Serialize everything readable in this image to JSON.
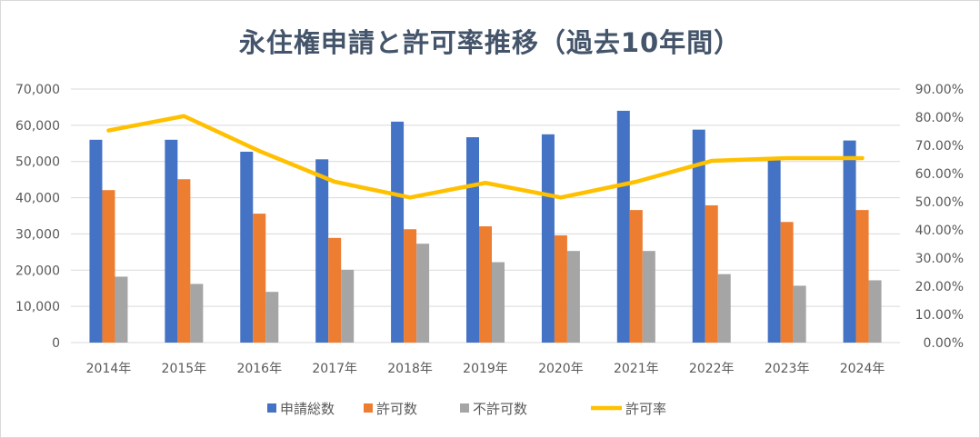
{
  "colors": {
    "applications": "#4472c4",
    "approvals": "#ed7d31",
    "rejections": "#a5a5a5",
    "rate": "#ffc000",
    "grid": "#d9d9d9",
    "title": "#44546a"
  },
  "chart_data": {
    "type": "bar",
    "title": "永住権申請と許可率推移（過去10年間）",
    "categories": [
      "2014年",
      "2015年",
      "2016年",
      "2017年",
      "2018年",
      "2019年",
      "2020年",
      "2021年",
      "2022年",
      "2023年",
      "2024年"
    ],
    "series": [
      {
        "name": "申請総数",
        "type": "bar",
        "axis": "left",
        "values": [
          56000,
          56000,
          52700,
          50600,
          61000,
          56700,
          57500,
          64000,
          58800,
          51000,
          55800
        ]
      },
      {
        "name": "許可数",
        "type": "bar",
        "axis": "left",
        "values": [
          42100,
          45100,
          35600,
          28900,
          31300,
          32100,
          29600,
          36600,
          37900,
          33300,
          36600
        ]
      },
      {
        "name": "不許可数",
        "type": "bar",
        "axis": "left",
        "values": [
          18200,
          16200,
          14000,
          20100,
          27300,
          22200,
          25300,
          25300,
          18900,
          15700,
          17200
        ]
      },
      {
        "name": "許可率",
        "type": "line",
        "axis": "right",
        "values": [
          0.753,
          0.804,
          0.68,
          0.571,
          0.515,
          0.567,
          0.515,
          0.571,
          0.645,
          0.655,
          0.655
        ]
      }
    ],
    "y_left": {
      "min": 0,
      "max": 70000,
      "ticks": [
        "0",
        "10,000",
        "20,000",
        "30,000",
        "40,000",
        "50,000",
        "60,000",
        "70,000"
      ]
    },
    "y_right": {
      "min": 0,
      "max": 0.9,
      "ticks": [
        "0.00%",
        "10.00%",
        "20.00%",
        "30.00%",
        "40.00%",
        "50.00%",
        "60.00%",
        "70.00%",
        "80.00%",
        "90.00%"
      ]
    },
    "grid": true,
    "legend_position": "bottom"
  }
}
